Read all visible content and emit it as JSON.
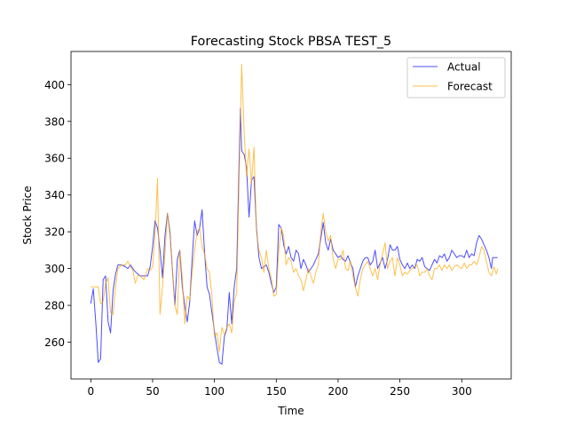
{
  "chart_data": {
    "type": "line",
    "title": "Forecasting Stock PBSA TEST_5",
    "xlabel": "Time",
    "ylabel": "Stock Price",
    "xlim": [
      -16,
      340
    ],
    "ylim": [
      240,
      418
    ],
    "xticks": [
      0,
      50,
      100,
      150,
      200,
      250,
      300
    ],
    "yticks": [
      260,
      280,
      300,
      320,
      340,
      360,
      380,
      400
    ],
    "grid": false,
    "legend_position": "top-right",
    "series": [
      {
        "name": "Actual",
        "color": "#0000ff",
        "points": [
          [
            0,
            281
          ],
          [
            2,
            289
          ],
          [
            4,
            271
          ],
          [
            6,
            249
          ],
          [
            8,
            251
          ],
          [
            10,
            294
          ],
          [
            12,
            296
          ],
          [
            14,
            271
          ],
          [
            16,
            265
          ],
          [
            18,
            288
          ],
          [
            20,
            297
          ],
          [
            22,
            302
          ],
          [
            25,
            302
          ],
          [
            28,
            301
          ],
          [
            30,
            300
          ],
          [
            32,
            302
          ],
          [
            35,
            299
          ],
          [
            38,
            297
          ],
          [
            40,
            296
          ],
          [
            43,
            296
          ],
          [
            46,
            296
          ],
          [
            48,
            301
          ],
          [
            50,
            312
          ],
          [
            52,
            326
          ],
          [
            54,
            322
          ],
          [
            56,
            310
          ],
          [
            58,
            295
          ],
          [
            60,
            318
          ],
          [
            62,
            330
          ],
          [
            64,
            320
          ],
          [
            66,
            300
          ],
          [
            68,
            280
          ],
          [
            70,
            305
          ],
          [
            72,
            310
          ],
          [
            74,
            290
          ],
          [
            76,
            280
          ],
          [
            78,
            271
          ],
          [
            80,
            282
          ],
          [
            82,
            305
          ],
          [
            84,
            326
          ],
          [
            86,
            318
          ],
          [
            88,
            322
          ],
          [
            90,
            332
          ],
          [
            92,
            309
          ],
          [
            94,
            290
          ],
          [
            96,
            286
          ],
          [
            98,
            276
          ],
          [
            100,
            266
          ],
          [
            102,
            257
          ],
          [
            104,
            249
          ],
          [
            106,
            248
          ],
          [
            108,
            263
          ],
          [
            110,
            267
          ],
          [
            112,
            287
          ],
          [
            114,
            270
          ],
          [
            116,
            290
          ],
          [
            118,
            300
          ],
          [
            120,
            360
          ],
          [
            121,
            387
          ],
          [
            122,
            364
          ],
          [
            124,
            362
          ],
          [
            126,
            355
          ],
          [
            128,
            328
          ],
          [
            130,
            348
          ],
          [
            132,
            350
          ],
          [
            134,
            322
          ],
          [
            136,
            306
          ],
          [
            138,
            300
          ],
          [
            140,
            301
          ],
          [
            142,
            302
          ],
          [
            144,
            298
          ],
          [
            146,
            292
          ],
          [
            148,
            287
          ],
          [
            150,
            290
          ],
          [
            152,
            324
          ],
          [
            154,
            322
          ],
          [
            156,
            313
          ],
          [
            158,
            308
          ],
          [
            160,
            312
          ],
          [
            162,
            306
          ],
          [
            164,
            304
          ],
          [
            166,
            310
          ],
          [
            168,
            308
          ],
          [
            170,
            300
          ],
          [
            172,
            305
          ],
          [
            174,
            302
          ],
          [
            176,
            298
          ],
          [
            178,
            300
          ],
          [
            180,
            302
          ],
          [
            182,
            305
          ],
          [
            184,
            308
          ],
          [
            186,
            316
          ],
          [
            188,
            325
          ],
          [
            190,
            314
          ],
          [
            192,
            310
          ],
          [
            194,
            316
          ],
          [
            196,
            310
          ],
          [
            198,
            308
          ],
          [
            200,
            306
          ],
          [
            202,
            307
          ],
          [
            204,
            305
          ],
          [
            206,
            304
          ],
          [
            208,
            307
          ],
          [
            210,
            303
          ],
          [
            212,
            300
          ],
          [
            214,
            290
          ],
          [
            216,
            296
          ],
          [
            218,
            300
          ],
          [
            220,
            304
          ],
          [
            222,
            306
          ],
          [
            224,
            306
          ],
          [
            226,
            302
          ],
          [
            228,
            304
          ],
          [
            230,
            310
          ],
          [
            232,
            300
          ],
          [
            234,
            303
          ],
          [
            236,
            306
          ],
          [
            238,
            300
          ],
          [
            240,
            305
          ],
          [
            242,
            313
          ],
          [
            244,
            310
          ],
          [
            246,
            310
          ],
          [
            248,
            312
          ],
          [
            250,
            305
          ],
          [
            252,
            302
          ],
          [
            254,
            300
          ],
          [
            256,
            303
          ],
          [
            258,
            300
          ],
          [
            260,
            302
          ],
          [
            262,
            300
          ],
          [
            264,
            305
          ],
          [
            266,
            304
          ],
          [
            268,
            306
          ],
          [
            270,
            301
          ],
          [
            272,
            300
          ],
          [
            274,
            299
          ],
          [
            276,
            302
          ],
          [
            278,
            305
          ],
          [
            280,
            303
          ],
          [
            282,
            307
          ],
          [
            284,
            306
          ],
          [
            286,
            308
          ],
          [
            288,
            304
          ],
          [
            290,
            306
          ],
          [
            292,
            310
          ],
          [
            294,
            308
          ],
          [
            296,
            306
          ],
          [
            298,
            307
          ],
          [
            300,
            307
          ],
          [
            302,
            306
          ],
          [
            304,
            310
          ],
          [
            306,
            306
          ],
          [
            308,
            308
          ],
          [
            310,
            307
          ],
          [
            312,
            314
          ],
          [
            314,
            318
          ],
          [
            316,
            316
          ],
          [
            318,
            313
          ],
          [
            320,
            310
          ],
          [
            322,
            306
          ],
          [
            324,
            300
          ],
          [
            325,
            306
          ],
          [
            327,
            306
          ],
          [
            329,
            306
          ]
        ]
      },
      {
        "name": "Forecast",
        "color": "#ffa500",
        "points": [
          [
            0,
            290
          ],
          [
            2,
            290
          ],
          [
            4,
            290
          ],
          [
            6,
            290
          ],
          [
            8,
            281
          ],
          [
            10,
            282
          ],
          [
            12,
            292
          ],
          [
            14,
            295
          ],
          [
            16,
            276
          ],
          [
            18,
            275
          ],
          [
            20,
            290
          ],
          [
            22,
            300
          ],
          [
            25,
            302
          ],
          [
            28,
            302
          ],
          [
            30,
            304
          ],
          [
            32,
            301
          ],
          [
            34,
            299
          ],
          [
            36,
            292
          ],
          [
            38,
            296
          ],
          [
            40,
            296
          ],
          [
            43,
            294
          ],
          [
            46,
            300
          ],
          [
            48,
            299
          ],
          [
            50,
            301
          ],
          [
            52,
            319
          ],
          [
            54,
            349
          ],
          [
            56,
            275
          ],
          [
            58,
            290
          ],
          [
            60,
            308
          ],
          [
            62,
            330
          ],
          [
            64,
            318
          ],
          [
            66,
            300
          ],
          [
            68,
            280
          ],
          [
            70,
            275
          ],
          [
            72,
            310
          ],
          [
            74,
            295
          ],
          [
            76,
            270
          ],
          [
            78,
            285
          ],
          [
            80,
            283
          ],
          [
            82,
            298
          ],
          [
            84,
            310
          ],
          [
            86,
            320
          ],
          [
            88,
            322
          ],
          [
            90,
            312
          ],
          [
            92,
            308
          ],
          [
            94,
            300
          ],
          [
            96,
            298
          ],
          [
            98,
            285
          ],
          [
            100,
            263
          ],
          [
            102,
            265
          ],
          [
            104,
            255
          ],
          [
            106,
            268
          ],
          [
            108,
            264
          ],
          [
            110,
            268
          ],
          [
            112,
            270
          ],
          [
            114,
            265
          ],
          [
            116,
            282
          ],
          [
            118,
            287
          ],
          [
            120,
            350
          ],
          [
            122,
            411
          ],
          [
            124,
            374
          ],
          [
            126,
            350
          ],
          [
            128,
            365
          ],
          [
            130,
            346
          ],
          [
            132,
            366
          ],
          [
            134,
            320
          ],
          [
            136,
            310
          ],
          [
            138,
            306
          ],
          [
            140,
            298
          ],
          [
            142,
            310
          ],
          [
            144,
            300
          ],
          [
            146,
            295
          ],
          [
            148,
            285
          ],
          [
            150,
            286
          ],
          [
            152,
            310
          ],
          [
            154,
            322
          ],
          [
            156,
            318
          ],
          [
            158,
            302
          ],
          [
            160,
            306
          ],
          [
            162,
            304
          ],
          [
            164,
            298
          ],
          [
            166,
            300
          ],
          [
            168,
            296
          ],
          [
            170,
            294
          ],
          [
            172,
            288
          ],
          [
            174,
            294
          ],
          [
            176,
            300
          ],
          [
            178,
            296
          ],
          [
            180,
            292
          ],
          [
            182,
            298
          ],
          [
            184,
            302
          ],
          [
            186,
            320
          ],
          [
            188,
            330
          ],
          [
            190,
            320
          ],
          [
            192,
            315
          ],
          [
            194,
            318
          ],
          [
            196,
            305
          ],
          [
            198,
            300
          ],
          [
            200,
            305
          ],
          [
            202,
            305
          ],
          [
            204,
            310
          ],
          [
            206,
            300
          ],
          [
            208,
            299
          ],
          [
            210,
            304
          ],
          [
            212,
            296
          ],
          [
            214,
            290
          ],
          [
            216,
            285
          ],
          [
            218,
            294
          ],
          [
            220,
            300
          ],
          [
            222,
            302
          ],
          [
            224,
            304
          ],
          [
            226,
            300
          ],
          [
            228,
            296
          ],
          [
            230,
            300
          ],
          [
            232,
            294
          ],
          [
            234,
            302
          ],
          [
            236,
            308
          ],
          [
            238,
            314
          ],
          [
            240,
            300
          ],
          [
            242,
            304
          ],
          [
            244,
            306
          ],
          [
            246,
            296
          ],
          [
            248,
            306
          ],
          [
            250,
            302
          ],
          [
            252,
            296
          ],
          [
            254,
            298
          ],
          [
            256,
            297
          ],
          [
            258,
            299
          ],
          [
            260,
            300
          ],
          [
            262,
            301
          ],
          [
            264,
            302
          ],
          [
            266,
            296
          ],
          [
            268,
            298
          ],
          [
            270,
            298
          ],
          [
            272,
            300
          ],
          [
            274,
            296
          ],
          [
            276,
            294
          ],
          [
            278,
            300
          ],
          [
            280,
            300
          ],
          [
            282,
            302
          ],
          [
            284,
            299
          ],
          [
            286,
            302
          ],
          [
            288,
            300
          ],
          [
            290,
            302
          ],
          [
            292,
            299
          ],
          [
            294,
            301
          ],
          [
            296,
            302
          ],
          [
            298,
            301
          ],
          [
            300,
            300
          ],
          [
            302,
            303
          ],
          [
            304,
            300
          ],
          [
            306,
            302
          ],
          [
            308,
            302
          ],
          [
            310,
            304
          ],
          [
            312,
            302
          ],
          [
            314,
            306
          ],
          [
            316,
            312
          ],
          [
            318,
            310
          ],
          [
            320,
            304
          ],
          [
            322,
            298
          ],
          [
            324,
            296
          ],
          [
            326,
            301
          ],
          [
            328,
            297
          ],
          [
            329,
            300
          ]
        ]
      }
    ]
  }
}
